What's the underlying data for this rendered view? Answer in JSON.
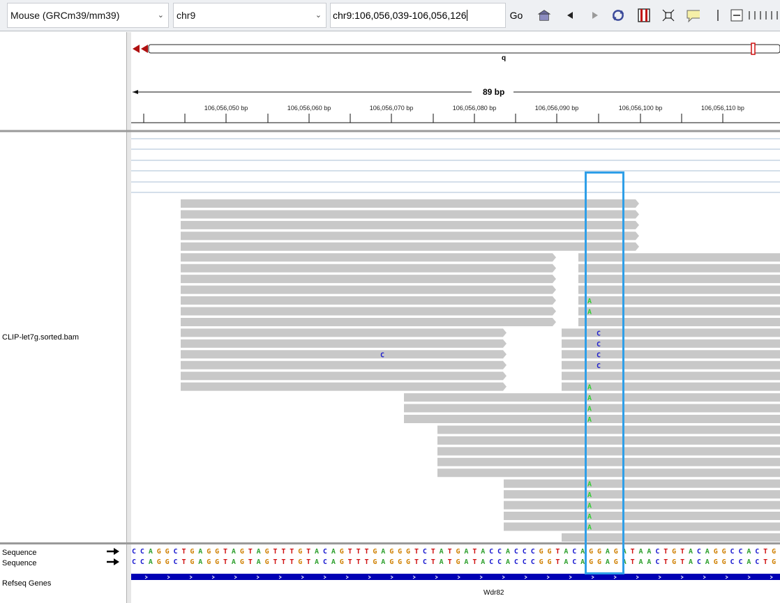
{
  "toolbar": {
    "genome": "Mouse (GRCm39/mm39)",
    "chromosome": "chr9",
    "locus": "chr9:106,056,039-106,056,126",
    "go_label": "Go"
  },
  "ideogram": {
    "band_label": "q"
  },
  "ruler": {
    "span_label": "89 bp",
    "ticks": [
      "106,056,050 bp",
      "106,056,060 bp",
      "106,056,070 bp",
      "106,056,080 bp",
      "106,056,090 bp",
      "106,056,100 bp",
      "106,056,110 bp"
    ]
  },
  "tracks": {
    "bam_label": "CLIP-let7g.sorted.bam",
    "seq1_label": "Sequence",
    "seq2_label": "Sequence",
    "genes_label": "Refseq Genes",
    "gene_name": "Wdr82"
  },
  "sequence": "CCAGGCTGAGGTAGTAGTTTGTACAGTTTGAGGGTCTATGATACCACCCGGTACAGGAGATAACTGTACAGGCCACTG",
  "base_colors": {
    "A": "#2ea02e",
    "C": "#1a1ad0",
    "G": "#d08000",
    "T": "#d01010"
  },
  "mismatch_colors": {
    "A": "#33cc33",
    "C": "#2222cc"
  },
  "reads": {
    "rows": [
      {
        "segs": [
          [
            259,
            916
          ]
        ]
      },
      {
        "segs": [
          [
            259,
            916
          ]
        ]
      },
      {
        "segs": [
          [
            259,
            916
          ]
        ]
      },
      {
        "segs": [
          [
            259,
            916
          ]
        ]
      },
      {
        "segs": [
          [
            259,
            916
          ]
        ]
      },
      {
        "segs": [
          [
            259,
            797
          ],
          [
            829,
            1118
          ]
        ]
      },
      {
        "segs": [
          [
            259,
            797
          ],
          [
            829,
            1118
          ]
        ]
      },
      {
        "segs": [
          [
            259,
            797
          ],
          [
            829,
            1118
          ]
        ]
      },
      {
        "segs": [
          [
            259,
            797
          ],
          [
            829,
            1118
          ]
        ]
      },
      {
        "segs": [
          [
            259,
            797
          ],
          [
            829,
            1118
          ]
        ],
        "mm": [
          [
            845,
            "A"
          ]
        ]
      },
      {
        "segs": [
          [
            259,
            797
          ],
          [
            829,
            1118
          ]
        ],
        "mm": [
          [
            845,
            "A"
          ]
        ]
      },
      {
        "segs": [
          [
            259,
            797
          ],
          [
            829,
            1118
          ]
        ]
      },
      {
        "segs": [
          [
            259,
            726
          ],
          [
            805,
            1118
          ]
        ],
        "mm": [
          [
            858,
            "C"
          ]
        ]
      },
      {
        "segs": [
          [
            259,
            726
          ],
          [
            805,
            1118
          ]
        ],
        "mm": [
          [
            858,
            "C"
          ]
        ]
      },
      {
        "segs": [
          [
            259,
            726
          ],
          [
            805,
            1118
          ]
        ],
        "mm": [
          [
            548,
            "C"
          ],
          [
            858,
            "C"
          ]
        ]
      },
      {
        "segs": [
          [
            259,
            726
          ],
          [
            805,
            1118
          ]
        ],
        "mm": [
          [
            858,
            "C"
          ]
        ]
      },
      {
        "segs": [
          [
            259,
            726
          ],
          [
            805,
            1118
          ]
        ]
      },
      {
        "segs": [
          [
            259,
            726
          ],
          [
            805,
            1118
          ]
        ],
        "mm": [
          [
            845,
            "A"
          ]
        ]
      },
      {
        "segs": [
          [
            579,
            1118
          ]
        ],
        "mm": [
          [
            845,
            "A"
          ]
        ]
      },
      {
        "segs": [
          [
            579,
            1118
          ]
        ],
        "mm": [
          [
            845,
            "A"
          ]
        ]
      },
      {
        "segs": [
          [
            579,
            1118
          ]
        ],
        "mm": [
          [
            845,
            "A"
          ]
        ]
      },
      {
        "segs": [
          [
            627,
            1118
          ]
        ]
      },
      {
        "segs": [
          [
            627,
            1118
          ]
        ]
      },
      {
        "segs": [
          [
            627,
            1118
          ]
        ]
      },
      {
        "segs": [
          [
            627,
            1118
          ]
        ]
      },
      {
        "segs": [
          [
            627,
            1118
          ]
        ]
      },
      {
        "segs": [
          [
            722,
            1118
          ]
        ],
        "mm": [
          [
            845,
            "A"
          ]
        ]
      },
      {
        "segs": [
          [
            722,
            1118
          ]
        ],
        "mm": [
          [
            845,
            "A"
          ]
        ]
      },
      {
        "segs": [
          [
            722,
            1118
          ]
        ],
        "mm": [
          [
            845,
            "A"
          ]
        ]
      },
      {
        "segs": [
          [
            722,
            1118
          ]
        ],
        "mm": [
          [
            845,
            "A"
          ]
        ]
      },
      {
        "segs": [
          [
            722,
            1118
          ]
        ],
        "mm": [
          [
            845,
            "A"
          ]
        ]
      },
      {
        "segs": [
          [
            805,
            1118
          ]
        ]
      }
    ]
  },
  "colors": {
    "read_fill": "#c8c8c8",
    "highlight": "#2f9fe8",
    "gene_bar": "#0000b4",
    "ideogram_centro": "#b01010"
  }
}
